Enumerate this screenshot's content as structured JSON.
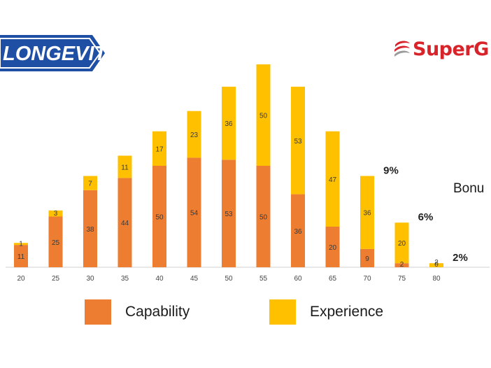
{
  "branding": {
    "left_logo": "LONGEVITY",
    "right_logo": "SuperG",
    "side_text": "Bonu"
  },
  "colors": {
    "capability": "#ed7d31",
    "experience": "#ffc000",
    "logo_blue": "#1f4fa5",
    "logo_red": "#d8232a"
  },
  "chart_data": {
    "type": "bar",
    "stacked": true,
    "categories": [
      "20",
      "25",
      "30",
      "35",
      "40",
      "45",
      "50",
      "55",
      "60",
      "65",
      "70",
      "75",
      "80"
    ],
    "series": [
      {
        "name": "Capability",
        "values": [
          11,
          25,
          38,
          44,
          50,
          54,
          53,
          50,
          36,
          20,
          9,
          2,
          0
        ]
      },
      {
        "name": "Experience",
        "values": [
          1,
          3,
          7,
          11,
          17,
          23,
          36,
          50,
          53,
          47,
          36,
          20,
          2
        ]
      }
    ],
    "data_labels": {
      "capability": [
        "11",
        "25",
        "38",
        "44",
        "50",
        "54",
        "53",
        "50",
        "36",
        "20",
        "9",
        "2",
        "0"
      ],
      "experience": [
        "1",
        "3",
        "7",
        "11",
        "17",
        "23",
        "36",
        "50",
        "53",
        "47",
        "36",
        "20",
        "2"
      ]
    },
    "annotations": [
      {
        "category": "70",
        "text": "9%"
      },
      {
        "category": "75",
        "text": "6%"
      },
      {
        "category": "80",
        "text": "2%"
      }
    ],
    "ylim": [
      0,
      100
    ],
    "grid": false,
    "legend": "bottom"
  }
}
